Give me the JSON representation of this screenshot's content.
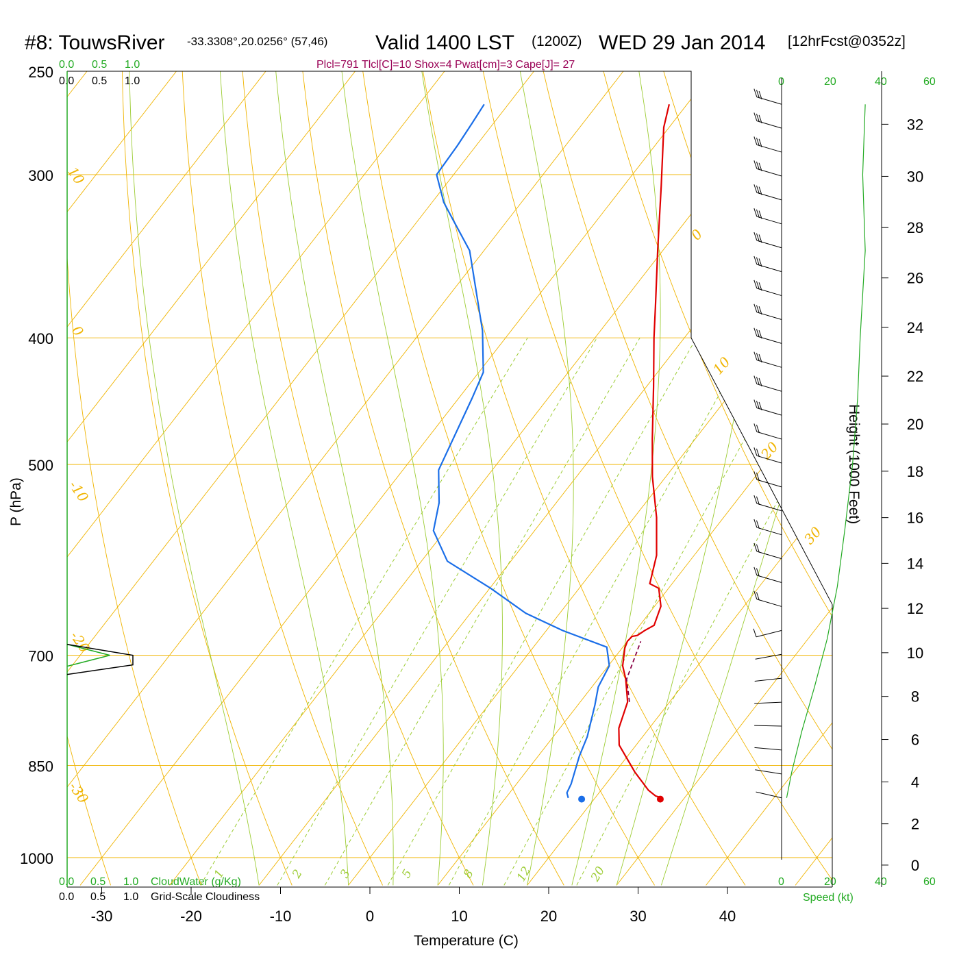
{
  "title": {
    "station": "#8: TouwsRiver",
    "coords": "-33.3308°,20.0256° (57,46)",
    "valid": "Valid 1400 LST",
    "zulu": "(1200Z)",
    "date": "WED 29 Jan 2014",
    "forecast": "[12hrFcst@0352z]"
  },
  "indices_line": "Plcl=791 Tlcl[C]=10 Shox=4 Pwat[cm]=3 Cape[J]= 27",
  "colors": {
    "temperature": "#e00000",
    "dewpoint": "#1a6ee8",
    "isotherm": "#f0b400",
    "dry_adiabat": "#f0b400",
    "moist_adiabat": "#9ccc33",
    "mixing_ratio": "#9ccc33",
    "parcel": "#880044",
    "green_labels": "#22aa22"
  },
  "cloud_scale": {
    "top_green": [
      "0.0",
      "0.5",
      "1.0"
    ],
    "top_black": [
      "0.0",
      "0.5",
      "1.0"
    ],
    "bottom_green": [
      "0.0",
      "0.5",
      "1.0"
    ],
    "bottom_black": [
      "0.0",
      "0.5",
      "1.0"
    ],
    "cloudwater_label": "CloudWater (g/Kg)",
    "cloudiness_label": "Grid-Scale Cloudiness"
  },
  "speed_scale": {
    "top": [
      "0",
      "20",
      "40",
      "60"
    ],
    "bottom": [
      "0",
      "20",
      "40",
      "60"
    ],
    "label": "Speed (kt)"
  },
  "isotherm_labels": [
    "10",
    "0",
    "-10",
    "-20",
    "-30",
    "0",
    "10",
    "20",
    "30"
  ],
  "mixing_ratio_labels": [
    "1",
    "2",
    "3",
    "5",
    "8",
    "12",
    "20"
  ],
  "chart_data": {
    "type": "line",
    "xlabel": "Temperature (C)",
    "ylabel": "P (hPa)",
    "y2label": "Height (1000 Feet)",
    "x_ticks": [
      "-30",
      "-20",
      "-10",
      "0",
      "10",
      "20",
      "30",
      "40"
    ],
    "y_ticks": [
      "250",
      "300",
      "400",
      "500",
      "700",
      "850",
      "1000"
    ],
    "height_ticks": [
      "0",
      "2",
      "4",
      "6",
      "8",
      "10",
      "12",
      "14",
      "16",
      "18",
      "20",
      "22",
      "24",
      "26",
      "28",
      "30",
      "32"
    ],
    "xlim": [
      -34,
      52
    ],
    "ylim": [
      1050,
      250
    ],
    "y_scale": "log",
    "skewed": true,
    "series": [
      {
        "name": "Temperature",
        "color": "#e00000",
        "points": [
          [
            27.5,
            900
          ],
          [
            26.6,
            897
          ],
          [
            25.3,
            888
          ],
          [
            22.2,
            860
          ],
          [
            18.1,
            820
          ],
          [
            16.6,
            796
          ],
          [
            15.3,
            760
          ],
          [
            13.1,
            730
          ],
          [
            11.6,
            713
          ],
          [
            10.3,
            691
          ],
          [
            10.0,
            683
          ],
          [
            10.1,
            677
          ],
          [
            10.6,
            676
          ],
          [
            11.0,
            670
          ],
          [
            11.6,
            664
          ],
          [
            10.7,
            642
          ],
          [
            8.9,
            622
          ],
          [
            7.5,
            617
          ],
          [
            5.8,
            587
          ],
          [
            2.5,
            549
          ],
          [
            -1.5,
            511
          ],
          [
            -4.8,
            478
          ],
          [
            -9.2,
            436
          ],
          [
            -13.4,
            400
          ],
          [
            -15.9,
            379
          ],
          [
            -20.7,
            342
          ],
          [
            -25.8,
            306
          ],
          [
            -30.6,
            276
          ],
          [
            -32.0,
            265
          ]
        ]
      },
      {
        "name": "Dewpoint",
        "color": "#1a6ee8",
        "points": [
          [
            17.0,
            900
          ],
          [
            16.4,
            892
          ],
          [
            16.1,
            878
          ],
          [
            14.6,
            836
          ],
          [
            13.8,
            808
          ],
          [
            11.9,
            764
          ],
          [
            10.7,
            740
          ],
          [
            10.1,
            713
          ],
          [
            8.2,
            690
          ],
          [
            1.8,
            670
          ],
          [
            -3.8,
            650
          ],
          [
            -9.9,
            622
          ],
          [
            -17.1,
            593
          ],
          [
            -21.3,
            562
          ],
          [
            -23.1,
            535
          ],
          [
            -26.0,
            505
          ],
          [
            -28.5,
            445
          ],
          [
            -29.5,
            425
          ],
          [
            -33.2,
            395
          ],
          [
            -41.6,
            343
          ],
          [
            -46.1,
            325
          ],
          [
            -48.7,
            315
          ],
          [
            -51.9,
            300
          ],
          [
            -52.1,
            285
          ],
          [
            -52.4,
            274
          ],
          [
            -52.7,
            265
          ]
        ]
      },
      {
        "name": "Parcel",
        "color": "#880044",
        "dashed": true,
        "points": [
          [
            15.5,
            760
          ],
          [
            13.2,
            730
          ],
          [
            11.5,
            683
          ]
        ]
      }
    ],
    "surface_markers": {
      "temperature": [
        27.4,
        902
      ],
      "dewpoint": [
        18.6,
        902
      ]
    },
    "cloud_water": {
      "pressure_center": 700,
      "peak_fraction": 0.65,
      "cloudiness_peak_fraction": 1.0
    },
    "wind_profile": {
      "speed_units": "kt",
      "points": [
        [
          33,
          265
        ],
        [
          32,
          300
        ],
        [
          33,
          343
        ],
        [
          31,
          400
        ],
        [
          30,
          445
        ],
        [
          28,
          500
        ],
        [
          25,
          560
        ],
        [
          22,
          620
        ],
        [
          18,
          680
        ],
        [
          13,
          740
        ],
        [
          8,
          800
        ],
        [
          4,
          860
        ],
        [
          2,
          900
        ]
      ]
    }
  }
}
